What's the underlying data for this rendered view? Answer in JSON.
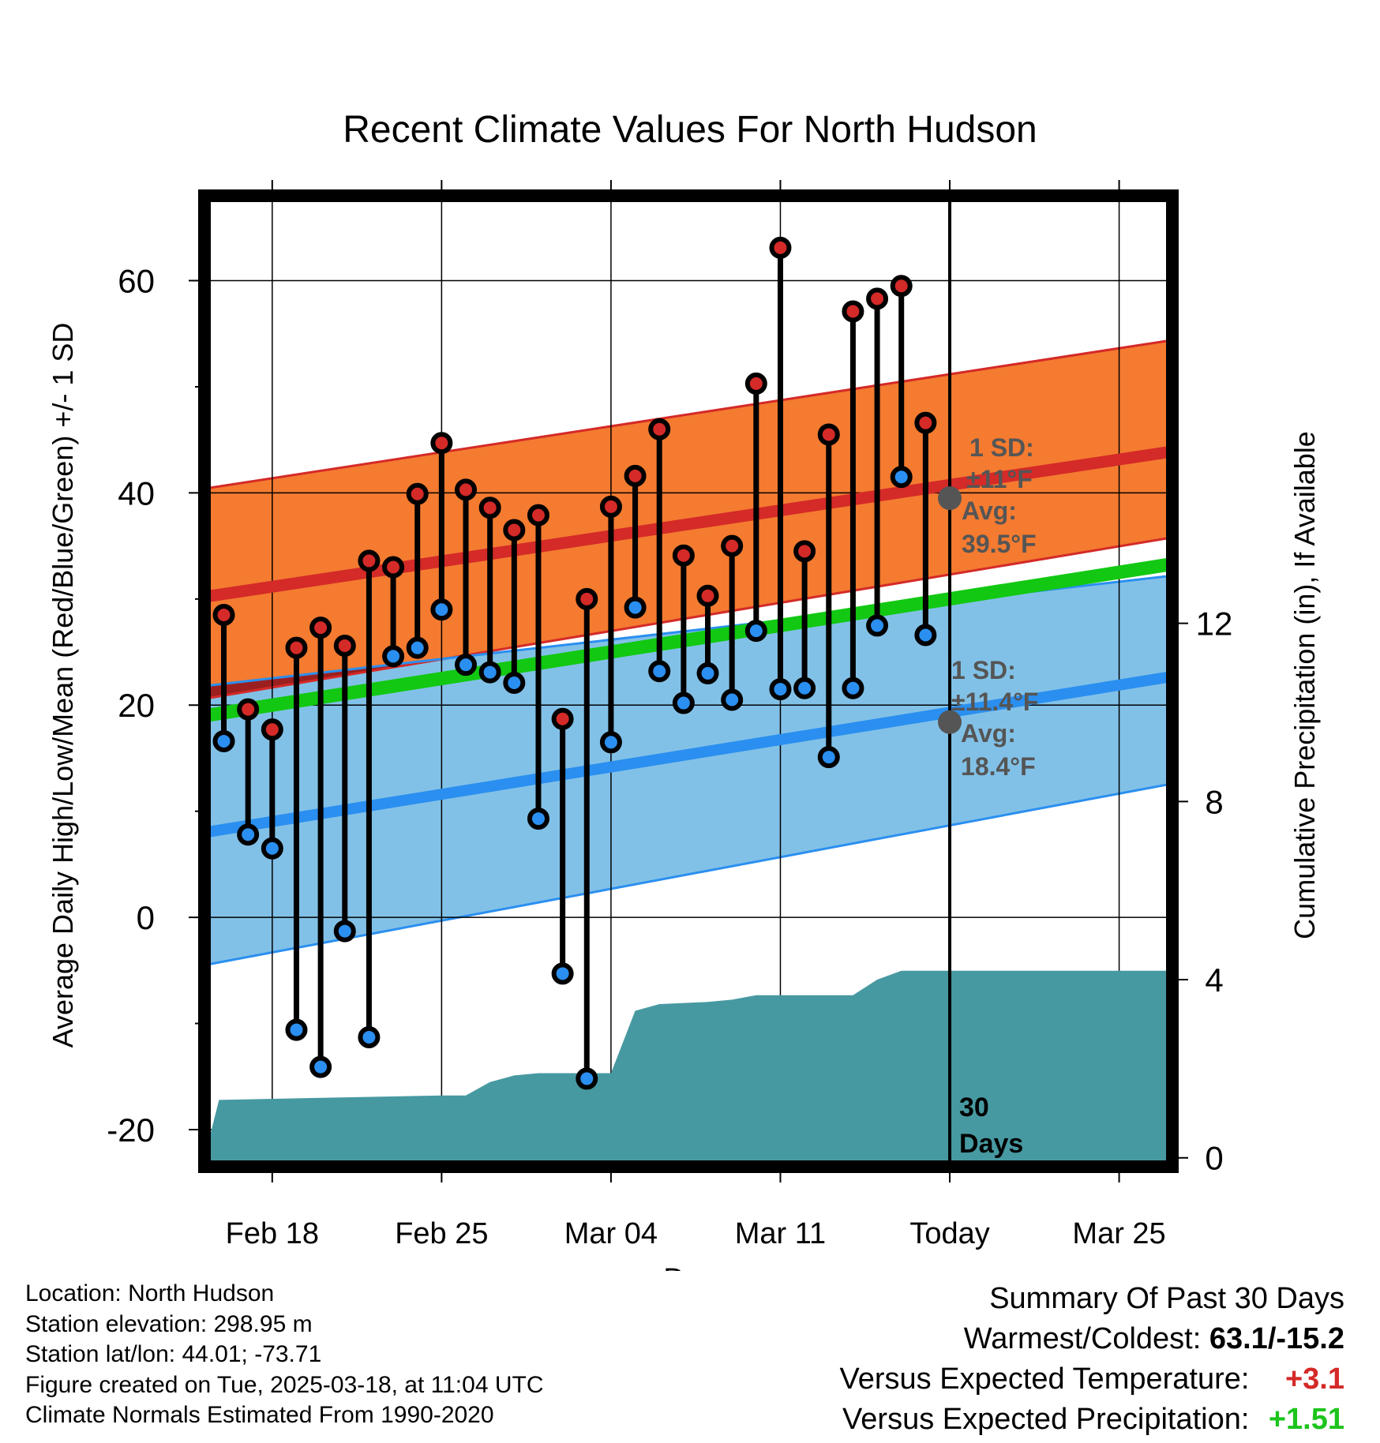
{
  "chart_data": {
    "type": "line",
    "title": "Recent Climate Values For North Hudson",
    "xlabel": "Day",
    "ylabel": "Average Daily High/Low/Mean (Red/Blue/Green) +/- 1 SD",
    "y2label": "Cumulative Precipitation (in), If Available",
    "x_tick_labels": [
      "Feb 18",
      "Feb 25",
      "Mar 04",
      "Mar 11",
      "Today",
      "Mar 25"
    ],
    "x_tick_days": [
      0,
      7,
      14,
      21,
      28,
      35
    ],
    "xlim": [
      -2.8,
      37.2
    ],
    "ylim": [
      -23.5,
      68
    ],
    "y_ticks": [
      -20,
      0,
      20,
      40,
      60
    ],
    "y2_ticks": [
      0,
      4,
      8,
      12
    ],
    "y2lim": [
      -0.2,
      21.6
    ],
    "today_day": 28,
    "days": [
      -2,
      -1,
      0,
      1,
      2,
      3,
      4,
      5,
      6,
      7,
      8,
      9,
      10,
      11,
      12,
      13,
      14,
      15,
      16,
      17,
      18,
      19,
      20,
      21,
      22,
      23,
      24,
      25,
      26,
      27
    ],
    "highs": [
      28.5,
      19.6,
      17.7,
      25.4,
      27.3,
      25.6,
      33.6,
      33.0,
      39.9,
      44.7,
      40.3,
      38.6,
      36.5,
      37.9,
      18.7,
      30.0,
      38.7,
      41.6,
      46.0,
      34.1,
      30.3,
      35.0,
      50.3,
      63.1,
      34.5,
      45.5,
      57.1,
      58.3,
      59.5,
      46.6
    ],
    "lows": [
      16.6,
      7.8,
      6.5,
      -10.6,
      -14.1,
      -1.3,
      -11.3,
      24.6,
      25.4,
      29.0,
      23.8,
      23.1,
      22.1,
      9.3,
      -5.3,
      -15.2,
      16.5,
      29.2,
      23.2,
      20.2,
      23.0,
      20.5,
      27.0,
      21.5,
      21.6,
      15.1,
      21.6,
      27.5,
      41.5,
      26.6
    ],
    "normal_days": [
      -2.8,
      37.2
    ],
    "normal_high": [
      30.2,
      43.9
    ],
    "normal_high_upper": [
      40.4,
      54.4
    ],
    "normal_high_lower": [
      20.6,
      35.8
    ],
    "normal_low": [
      8.0,
      22.7
    ],
    "normal_low_upper": [
      21.8,
      32.2
    ],
    "normal_low_lower": [
      -4.5,
      12.6
    ],
    "normal_mean": [
      19.0,
      33.3
    ],
    "precip_days": [
      -2.8,
      -2.2,
      7,
      8,
      9,
      10,
      11,
      14,
      15,
      16,
      18,
      19,
      20,
      24,
      25,
      26,
      37.2
    ],
    "precip_cum": [
      0.0,
      1.3,
      1.4,
      1.4,
      1.7,
      1.85,
      1.9,
      1.9,
      3.3,
      3.45,
      3.5,
      3.55,
      3.65,
      3.65,
      4.0,
      4.2,
      4.2
    ],
    "sd_high_label": [
      "1 SD:",
      "±11°F",
      "Avg:",
      "39.5°F"
    ],
    "sd_low_label": [
      "1 SD:",
      "±11.4°F",
      "Avg:",
      "18.4°F"
    ],
    "today_avg_high": 39.5,
    "today_avg_low": 18.4,
    "days_label": [
      "30",
      "Days"
    ],
    "colors": {
      "high_band": "#f47b30",
      "low_band": "#82c1e7",
      "overlap": "#9b1f1f",
      "high_line": "#d42a28",
      "low_line": "#2a8ff0",
      "mean_line": "#12c812",
      "precip": "#4799a1",
      "annotation": "#555555"
    }
  },
  "info": {
    "location": "Location: North Hudson",
    "elevation": "Station elevation: 298.95 m",
    "latlon": "Station lat/lon: 44.01; -73.71",
    "created": "Figure created on Tue, 2025-03-18, at 11:04 UTC",
    "normals": "Climate Normals Estimated From 1990-2020"
  },
  "summary": {
    "heading": "Summary Of Past 30 Days",
    "warmest_label": "Warmest/Coldest:",
    "warmest_value": "63.1/-15.2",
    "temp_label": "Versus Expected Temperature:",
    "temp_value": "+3.1",
    "precip_label": "Versus Expected Precipitation:",
    "precip_value": "+1.51"
  }
}
